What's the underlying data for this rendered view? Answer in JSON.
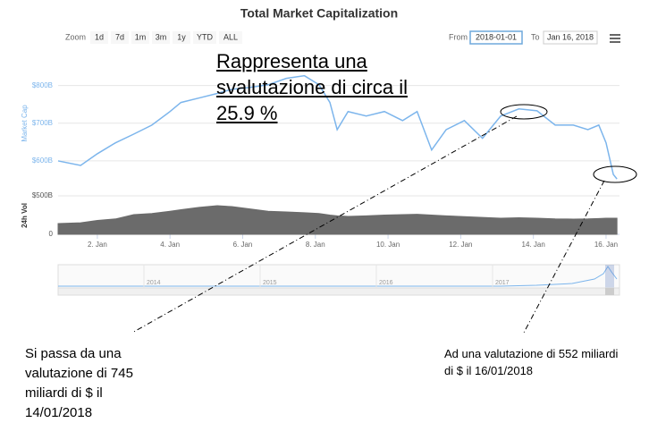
{
  "chart_data": {
    "type": "line",
    "title": "Total Market Capitalization",
    "x": [
      0.92,
      1.54,
      2,
      2.5,
      3,
      3.5,
      4,
      4.3,
      4.8,
      5.3,
      5.7,
      6.2,
      6.7,
      7.2,
      7.7,
      8.1,
      8.4,
      8.6,
      8.9,
      9.4,
      9.9,
      10.4,
      10.8,
      11.2,
      11.6,
      12.1,
      12.6,
      13.1,
      13.6,
      14.1,
      14.6,
      15.1,
      15.5,
      15.8,
      16,
      16.2,
      16.3
    ],
    "series": [
      {
        "name": "Market Cap",
        "color": "#7cb5ec",
        "values": [
          600,
          588,
          619,
          648,
          671,
          695,
          731,
          755,
          767,
          779,
          790,
          795,
          802,
          819,
          826,
          802,
          755,
          683,
          731,
          719,
          731,
          707,
          731,
          629,
          683,
          707,
          660,
          719,
          738,
          733,
          695,
          695,
          683,
          695,
          648,
          564,
          552
        ]
      },
      {
        "name": "24h Vol",
        "color": "#6b6b6b",
        "axis": "y2",
        "values": [
          140,
          150,
          180,
          200,
          256,
          270,
          300,
          320,
          350,
          372,
          360,
          330,
          300,
          290,
          280,
          270,
          250,
          240,
          233,
          240,
          250,
          256,
          260,
          250,
          240,
          230,
          220,
          209,
          215,
          210,
          200,
          198,
          200,
          205,
          210,
          209,
          209
        ]
      }
    ],
    "xlim": [
      0.92,
      16.37
    ],
    "xticks": [
      {
        "value": 2,
        "label": "2. Jan"
      },
      {
        "value": 4,
        "label": "4. Jan"
      },
      {
        "value": 6,
        "label": "6. Jan"
      },
      {
        "value": 8,
        "label": "8. Jan"
      },
      {
        "value": 10,
        "label": "10. Jan"
      },
      {
        "value": 12,
        "label": "12. Jan"
      },
      {
        "value": 14,
        "label": "14. Jan"
      },
      {
        "value": 16,
        "label": "16. Jan"
      }
    ],
    "ylim": [
      550,
      830
    ],
    "yticks": [
      {
        "value": 600,
        "label": "$600B"
      },
      {
        "value": 700,
        "label": "$700B"
      },
      {
        "value": 800,
        "label": "$800B"
      }
    ],
    "y2lim": [
      0,
      500
    ],
    "y2ticks": [
      0,
      {
        "value": 500,
        "label": "$500B"
      }
    ],
    "grid": true,
    "navigator_labels": [
      "2014",
      "2015",
      "2016",
      "2017"
    ]
  },
  "range_selector": {
    "label": "Zoom",
    "buttons": [
      "1d",
      "7d",
      "1m",
      "3m",
      "1y",
      "YTD",
      "ALL"
    ]
  },
  "date_range": {
    "from_label": "From",
    "from": "2018-01-01",
    "to_label": "To",
    "to": "Jan 16, 2018"
  },
  "annotations": {
    "headline": "Rappresenta una svalutazione di circa il 25.9 %",
    "left_note": "Si passa da una valutazione di 745 miliardi di $ il 14/01/2018",
    "right_note": "Ad una valutazione di 552 miliardi di $ il 16/01/2018"
  }
}
